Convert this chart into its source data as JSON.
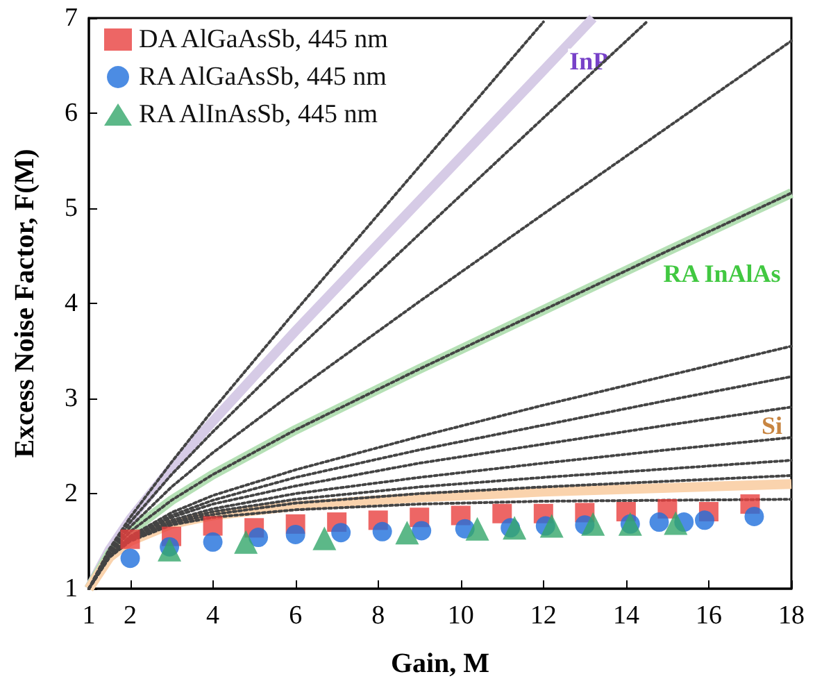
{
  "chart_data": {
    "type": "scatter",
    "xlabel": "Gain, M",
    "ylabel": "Excess Noise Factor, F(M)",
    "xlim": [
      1,
      18
    ],
    "xticks": [
      1,
      2,
      4,
      6,
      8,
      10,
      12,
      14,
      16,
      18
    ],
    "ylim": [
      1,
      7
    ],
    "yticks": [
      1,
      2,
      3,
      4,
      5,
      6,
      7
    ],
    "grid": false,
    "legend": "top left",
    "series": [
      {
        "type": "line",
        "name": "InP",
        "line_style": "solid",
        "color": "#d6cbe6",
        "x": [
          1,
          1.5,
          2,
          3,
          4,
          6,
          9,
          12,
          13.2
        ],
        "values": [
          1,
          1.41,
          1.73,
          2.27,
          2.76,
          3.71,
          5.08,
          6.45,
          7.0
        ]
      },
      {
        "type": "line",
        "name": "RA InAlAs",
        "line_style": "solid",
        "color": "#b5e0b5",
        "x": [
          1,
          1.5,
          2,
          3,
          4,
          6,
          9,
          12,
          15,
          18
        ],
        "values": [
          1,
          1.37,
          1.6,
          1.93,
          2.2,
          2.67,
          3.31,
          3.93,
          4.55,
          5.16
        ]
      },
      {
        "type": "line",
        "name": "Si",
        "line_style": "solid",
        "color": "#fad3ad",
        "x": [
          1,
          1.5,
          2,
          3,
          4,
          6,
          9,
          12,
          15,
          18
        ],
        "values": [
          1,
          1.33,
          1.5,
          1.68,
          1.77,
          1.87,
          1.96,
          2.02,
          2.06,
          2.1
        ]
      },
      {
        "type": "line",
        "line_style": "dotted",
        "color": "#444444",
        "x": [
          1,
          1.5,
          2,
          3,
          4,
          6,
          9,
          12,
          15,
          18
        ],
        "values": [
          1,
          1.33,
          1.5,
          1.67,
          1.75,
          1.83,
          1.89,
          1.92,
          1.93,
          1.94
        ]
      },
      {
        "type": "line",
        "line_style": "dotted",
        "color": "#444444",
        "x": [
          1,
          1.5,
          2,
          3,
          4,
          6,
          9,
          12,
          15,
          18
        ],
        "values": [
          1,
          1.34,
          1.51,
          1.69,
          1.78,
          1.9,
          2.0,
          2.07,
          2.13,
          2.19
        ]
      },
      {
        "type": "line",
        "line_style": "dotted",
        "color": "#444444",
        "x": [
          1,
          1.5,
          2,
          3,
          4,
          6,
          9,
          12,
          15,
          18
        ],
        "values": [
          1,
          1.34,
          1.51,
          1.7,
          1.81,
          1.94,
          2.07,
          2.17,
          2.26,
          2.35
        ]
      },
      {
        "type": "line",
        "line_style": "dotted",
        "color": "#444444",
        "x": [
          1,
          1.5,
          2,
          3,
          4,
          6,
          9,
          12,
          15,
          18
        ],
        "values": [
          1,
          1.34,
          1.52,
          1.72,
          1.84,
          2.0,
          2.17,
          2.32,
          2.46,
          2.59
        ]
      },
      {
        "type": "line",
        "line_style": "dotted",
        "color": "#444444",
        "x": [
          1,
          1.5,
          2,
          3,
          4,
          6,
          9,
          12,
          15,
          18
        ],
        "values": [
          1,
          1.34,
          1.53,
          1.75,
          1.89,
          2.08,
          2.32,
          2.52,
          2.72,
          2.91
        ]
      },
      {
        "type": "line",
        "line_style": "dotted",
        "color": "#444444",
        "x": [
          1,
          1.5,
          2,
          3,
          4,
          6,
          9,
          12,
          15,
          18
        ],
        "values": [
          1,
          1.35,
          1.54,
          1.77,
          1.93,
          2.17,
          2.46,
          2.72,
          2.98,
          3.23
        ]
      },
      {
        "type": "line",
        "line_style": "dotted",
        "color": "#444444",
        "x": [
          1,
          1.5,
          2,
          3,
          4,
          6,
          9,
          12,
          15,
          18
        ],
        "values": [
          1,
          1.35,
          1.55,
          1.8,
          1.98,
          2.25,
          2.6,
          2.93,
          3.24,
          3.55
        ]
      },
      {
        "type": "line",
        "line_style": "dotted",
        "color": "#444444",
        "x": [
          1,
          1.5,
          2,
          3,
          4,
          6,
          9,
          12,
          15,
          18
        ],
        "values": [
          1,
          1.37,
          1.6,
          1.93,
          2.2,
          2.67,
          3.31,
          3.93,
          4.55,
          5.16
        ]
      },
      {
        "type": "line",
        "line_style": "dotted",
        "color": "#444444",
        "x": [
          1,
          1.5,
          2,
          3,
          4,
          6,
          9,
          12,
          15,
          18
        ],
        "values": [
          1,
          1.38,
          1.65,
          2.07,
          2.43,
          3.08,
          4.02,
          4.94,
          5.85,
          6.76
        ]
      },
      {
        "type": "line",
        "line_style": "dotted",
        "color": "#444444",
        "x": [
          1,
          1.5,
          2,
          3,
          4,
          6,
          9,
          12,
          14.5
        ],
        "values": [
          1,
          1.4,
          1.7,
          2.2,
          2.65,
          3.5,
          4.73,
          5.95,
          6.96
        ]
      },
      {
        "type": "line",
        "line_style": "dotted",
        "color": "#444444",
        "x": [
          1,
          1.5,
          2,
          3,
          4,
          6,
          9,
          12
        ],
        "values": [
          1,
          1.42,
          1.75,
          2.33,
          2.88,
          3.92,
          5.44,
          6.96
        ]
      },
      {
        "name": "DA AlGaAsSb, 445 nm",
        "marker": "square",
        "color": "#e8403f",
        "x": [
          2,
          3,
          4,
          5,
          6,
          7,
          8,
          9,
          10,
          11,
          12,
          13,
          14,
          15,
          16,
          17
        ],
        "values": [
          1.52,
          1.55,
          1.66,
          1.64,
          1.68,
          1.7,
          1.72,
          1.75,
          1.77,
          1.79,
          1.79,
          1.8,
          1.81,
          1.84,
          1.81,
          1.89
        ]
      },
      {
        "name": "RA AlGaAsSb, 445 nm",
        "marker": "circle",
        "color": "#1f6fdc",
        "x": [
          2,
          2.95,
          4,
          5.1,
          6,
          7.1,
          8.1,
          9.05,
          10.1,
          11.2,
          12.05,
          13,
          14.1,
          14.8,
          15.4,
          15.9,
          17.1
        ],
        "values": [
          1.32,
          1.44,
          1.49,
          1.54,
          1.57,
          1.59,
          1.6,
          1.61,
          1.63,
          1.64,
          1.66,
          1.67,
          1.68,
          1.7,
          1.7,
          1.72,
          1.76
        ]
      },
      {
        "name": "RA AlInAsSb, 445 nm",
        "marker": "triangle",
        "color": "#33a66a",
        "x": [
          2.95,
          4.8,
          6.7,
          8.7,
          10.4,
          11.3,
          12.2,
          13.2,
          14.1,
          15.2
        ],
        "values": [
          1.41,
          1.49,
          1.53,
          1.59,
          1.63,
          1.64,
          1.66,
          1.68,
          1.68,
          1.69
        ]
      }
    ]
  }
}
